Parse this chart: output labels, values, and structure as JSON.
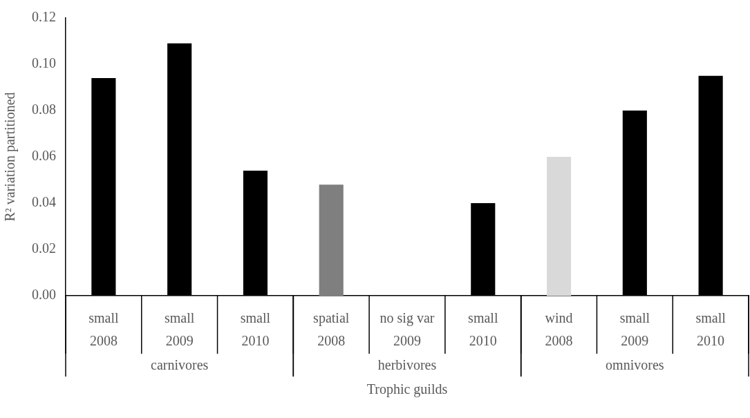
{
  "chart_data": {
    "type": "bar",
    "ylabel": "R² variation partitioned",
    "xlabel": "Trophic guilds",
    "categories": [
      "small\n2008",
      "small\n2009",
      "small\n2010",
      "spatial\n2008",
      "no sig var\n2009",
      "small\n2010",
      "wind\n2008",
      "small\n2009",
      "small\n2010"
    ],
    "values": [
      0.094,
      0.109,
      0.054,
      0.048,
      0,
      0.04,
      0.06,
      0.08,
      0.095
    ],
    "colors": [
      "#000000",
      "#000000",
      "#000000",
      "#7f7f7f",
      "#000000",
      "#000000",
      "#d9d9d9",
      "#000000",
      "#000000"
    ],
    "ylim": [
      0,
      0.12
    ],
    "yticks": [
      {
        "value": 0,
        "label": "0.00"
      },
      {
        "value": 0.02,
        "label": "0.02"
      },
      {
        "value": 0.04,
        "label": "0.04"
      },
      {
        "value": 0.06,
        "label": "0.06"
      },
      {
        "value": 0.08,
        "label": "0.08"
      },
      {
        "value": 0.1,
        "label": "0.10"
      },
      {
        "value": 0.12,
        "label": "0.12"
      }
    ],
    "annotations": [
      "carnivores",
      "herbivores",
      "omnivores"
    ],
    "grid": false,
    "legend": false
  }
}
